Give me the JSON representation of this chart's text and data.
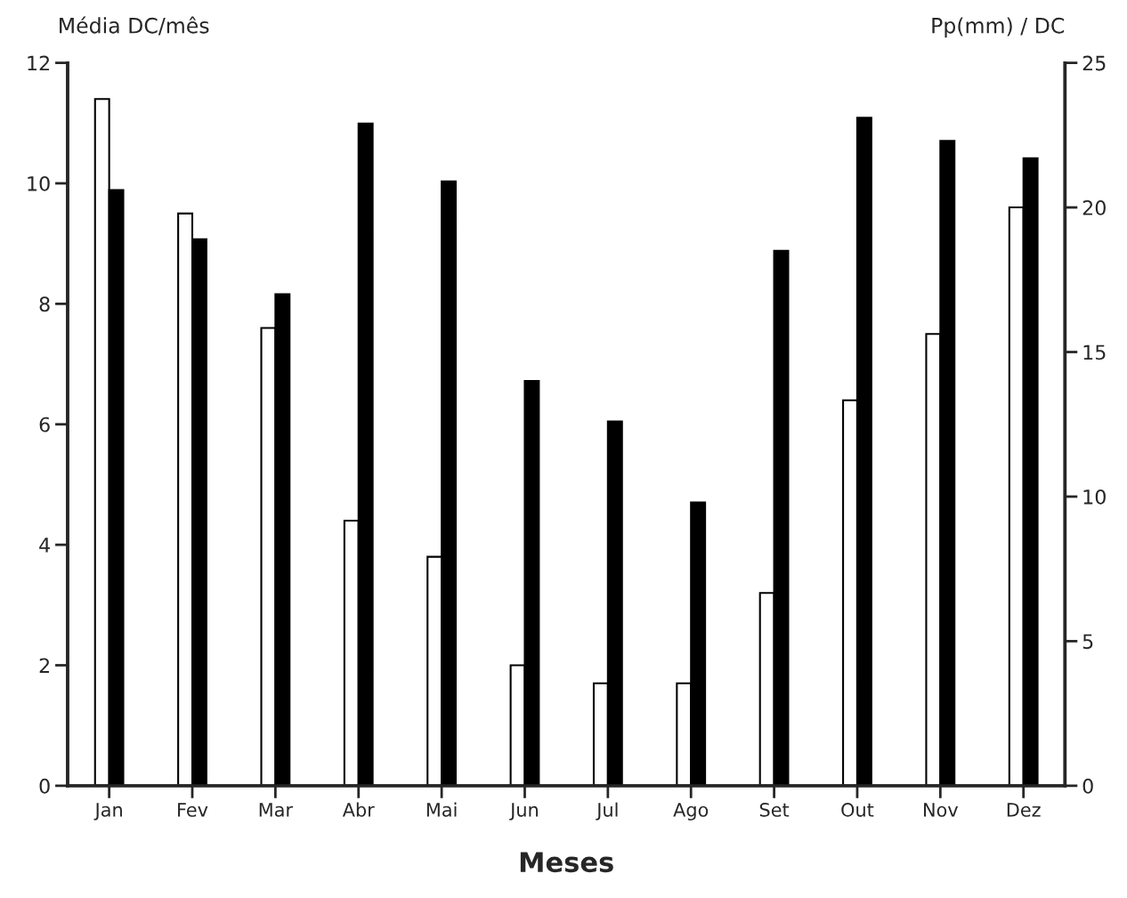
{
  "chart_data": {
    "type": "bar",
    "xlabel": "Meses",
    "ylabel": "Média DC/mês",
    "y2label": "Pp(mm) / DC",
    "categories": [
      "Jan",
      "Fev",
      "Mar",
      "Abr",
      "Mai",
      "Jun",
      "Jul",
      "Ago",
      "Set",
      "Out",
      "Nov",
      "Dez"
    ],
    "series": [
      {
        "color": "#ffffff",
        "values": [
          11.4,
          9.5,
          7.6,
          4.4,
          3.8,
          2.0,
          1.7,
          1.7,
          3.2,
          6.4,
          7.5,
          9.6
        ]
      },
      {
        "color": "#000000",
        "axis": "y2",
        "values": [
          20.6,
          18.9,
          17.0,
          22.9,
          20.9,
          14.0,
          12.6,
          9.8,
          18.5,
          23.1,
          22.3,
          21.7
        ]
      }
    ],
    "ylim": [
      0,
      12
    ],
    "yticks": [
      0,
      2,
      4,
      6,
      8,
      10,
      12
    ],
    "y2lim": [
      0,
      25
    ],
    "y2ticks": [
      0,
      5,
      10,
      15,
      20,
      25
    ],
    "grid": false,
    "legend": false
  }
}
